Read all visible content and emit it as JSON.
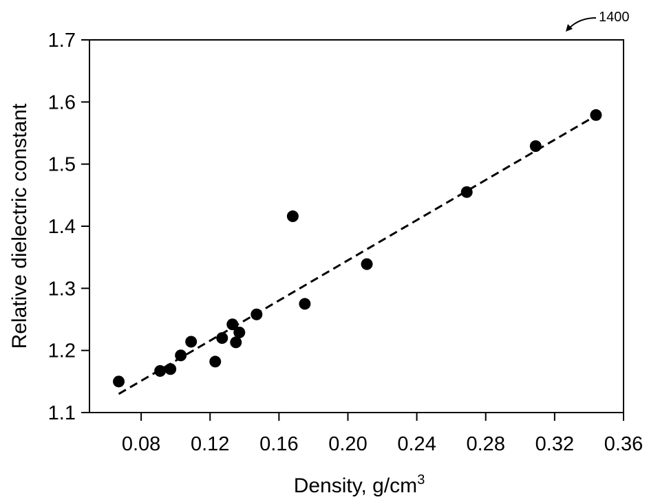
{
  "figure": {
    "reference_number": "1400"
  },
  "chart_data": {
    "type": "scatter",
    "xlabel": "Density, g/cm",
    "xlabel_superscript": "3",
    "ylabel": "Relative dielectric constant",
    "xlim": [
      0.05,
      0.36
    ],
    "ylim": [
      1.1,
      1.7
    ],
    "xticks": [
      "0.08",
      "0.12",
      "0.16",
      "0.20",
      "0.24",
      "0.28",
      "0.32",
      "0.36"
    ],
    "yticks": [
      "1.1",
      "1.2",
      "1.3",
      "1.4",
      "1.5",
      "1.6",
      "1.7"
    ],
    "grid": false,
    "legend": "none",
    "marker_color": "#000000",
    "points": [
      {
        "x": 0.067,
        "y": 1.15
      },
      {
        "x": 0.091,
        "y": 1.167
      },
      {
        "x": 0.097,
        "y": 1.17
      },
      {
        "x": 0.103,
        "y": 1.192
      },
      {
        "x": 0.109,
        "y": 1.214
      },
      {
        "x": 0.123,
        "y": 1.182
      },
      {
        "x": 0.127,
        "y": 1.22
      },
      {
        "x": 0.133,
        "y": 1.242
      },
      {
        "x": 0.135,
        "y": 1.213
      },
      {
        "x": 0.137,
        "y": 1.229
      },
      {
        "x": 0.147,
        "y": 1.258
      },
      {
        "x": 0.168,
        "y": 1.416
      },
      {
        "x": 0.175,
        "y": 1.275
      },
      {
        "x": 0.211,
        "y": 1.339
      },
      {
        "x": 0.269,
        "y": 1.455
      },
      {
        "x": 0.309,
        "y": 1.529
      },
      {
        "x": 0.344,
        "y": 1.579
      }
    ],
    "fit_line": {
      "style": "dashed",
      "color": "#000000",
      "x": [
        0.067,
        0.344
      ],
      "y": [
        1.13,
        1.578
      ]
    }
  }
}
